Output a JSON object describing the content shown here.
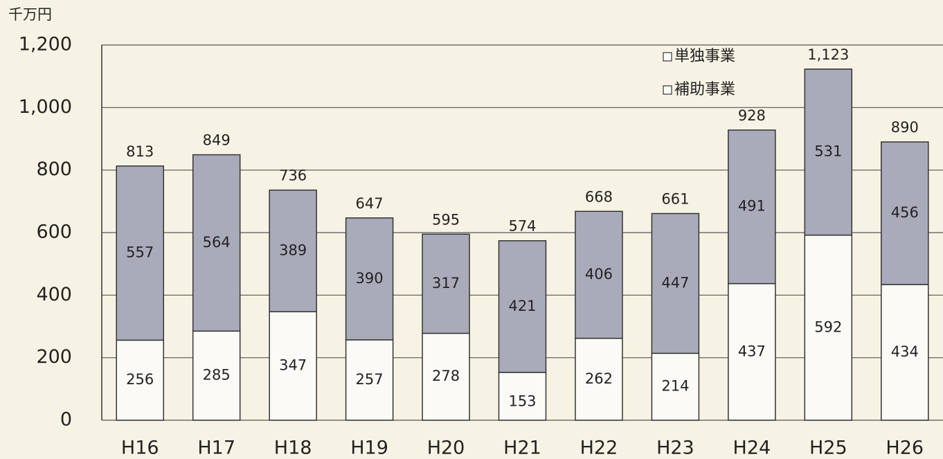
{
  "chart_data": {
    "type": "stacked_bar",
    "y_unit_label": "千万円",
    "categories": [
      "H16",
      "H17",
      "H18",
      "H19",
      "H20",
      "H21",
      "H22",
      "H23",
      "H24",
      "H25",
      "H26"
    ],
    "series": [
      {
        "name": "補助事業",
        "color": "#fbfaf6",
        "values": [
          256,
          285,
          347,
          257,
          278,
          153,
          262,
          214,
          437,
          592,
          434
        ]
      },
      {
        "name": "単独事業",
        "color": "#a9abba",
        "values": [
          557,
          564,
          389,
          390,
          317,
          421,
          406,
          447,
          491,
          531,
          456
        ]
      }
    ],
    "totals": {
      "values": [
        813,
        849,
        736,
        647,
        595,
        574,
        668,
        661,
        928,
        1123,
        890
      ],
      "value_labels": [
        "813",
        "849",
        "736",
        "647",
        "595",
        "574",
        "668",
        "661",
        "928",
        "1,123",
        "890"
      ]
    },
    "ylim": [
      0,
      1200
    ],
    "yticks": [
      0,
      200,
      400,
      600,
      800,
      {
        "value": 1000,
        "label": "1,000"
      },
      {
        "value": 1200,
        "label": "1,200"
      }
    ],
    "grid": true,
    "legend_position": "top-right"
  }
}
